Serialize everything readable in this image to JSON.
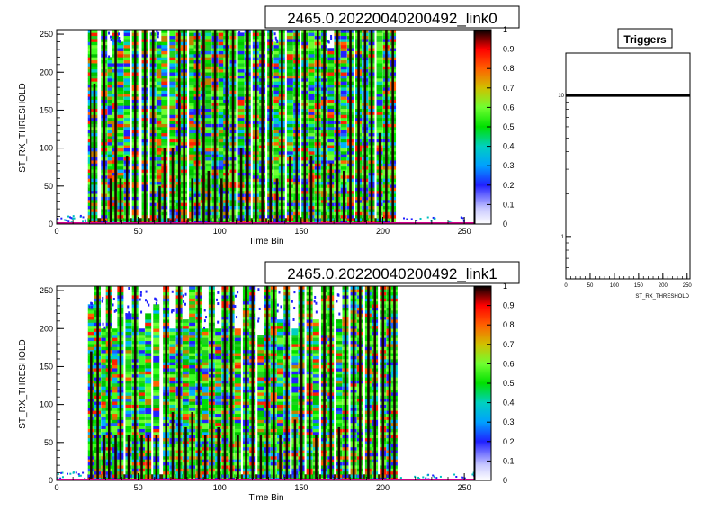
{
  "chart_data": [
    {
      "type": "heatmap",
      "title": "2465.0.20220040200492_link0",
      "xlabel": "Time Bin",
      "ylabel": "ST_RX_THRESHOLD",
      "xlim": [
        0,
        256
      ],
      "ylim": [
        0,
        256
      ],
      "xticks": [
        0,
        50,
        100,
        150,
        200,
        250
      ],
      "yticks": [
        0,
        50,
        100,
        150,
        200,
        250
      ],
      "zlim": [
        0,
        1
      ],
      "zticks": [
        0,
        0.1,
        0.2,
        0.3,
        0.4,
        0.5,
        0.6,
        0.7,
        0.8,
        0.9,
        1
      ],
      "active_x_range": [
        19,
        208
      ],
      "spikes": [
        {
          "x": 20,
          "top": 256,
          "dark": 256
        },
        {
          "x": 22,
          "top": 256,
          "dark": 185
        },
        {
          "x": 28,
          "top": 256,
          "dark": 256
        },
        {
          "x": 32,
          "top": 220,
          "dark": 60
        },
        {
          "x": 35,
          "top": 256,
          "dark": 256
        },
        {
          "x": 38,
          "top": 240,
          "dark": 60
        },
        {
          "x": 42,
          "top": 256,
          "dark": 90
        },
        {
          "x": 47,
          "top": 256,
          "dark": 256
        },
        {
          "x": 53,
          "top": 256,
          "dark": 256
        },
        {
          "x": 58,
          "top": 250,
          "dark": 256
        },
        {
          "x": 62,
          "top": 240,
          "dark": 50
        },
        {
          "x": 65,
          "top": 256,
          "dark": 100
        },
        {
          "x": 70,
          "top": 256,
          "dark": 100
        },
        {
          "x": 74,
          "top": 256,
          "dark": 256
        },
        {
          "x": 77,
          "top": 256,
          "dark": 256
        },
        {
          "x": 82,
          "top": 256,
          "dark": 60
        },
        {
          "x": 85,
          "top": 256,
          "dark": 256
        },
        {
          "x": 89,
          "top": 256,
          "dark": 256
        },
        {
          "x": 92,
          "top": 256,
          "dark": 70
        },
        {
          "x": 96,
          "top": 256,
          "dark": 256
        },
        {
          "x": 100,
          "top": 256,
          "dark": 60
        },
        {
          "x": 103,
          "top": 256,
          "dark": 256
        },
        {
          "x": 107,
          "top": 256,
          "dark": 256
        },
        {
          "x": 112,
          "top": 250,
          "dark": 100
        },
        {
          "x": 116,
          "top": 256,
          "dark": 256
        },
        {
          "x": 121,
          "top": 256,
          "dark": 256
        },
        {
          "x": 125,
          "top": 256,
          "dark": 256
        },
        {
          "x": 130,
          "top": 256,
          "dark": 256
        },
        {
          "x": 134,
          "top": 240,
          "dark": 60
        },
        {
          "x": 137,
          "top": 256,
          "dark": 256
        },
        {
          "x": 142,
          "top": 256,
          "dark": 90
        },
        {
          "x": 146,
          "top": 256,
          "dark": 256
        },
        {
          "x": 151,
          "top": 256,
          "dark": 256
        },
        {
          "x": 155,
          "top": 256,
          "dark": 90
        },
        {
          "x": 159,
          "top": 256,
          "dark": 256
        },
        {
          "x": 163,
          "top": 256,
          "dark": 256
        },
        {
          "x": 167,
          "top": 230,
          "dark": 80
        },
        {
          "x": 171,
          "top": 256,
          "dark": 256
        },
        {
          "x": 175,
          "top": 256,
          "dark": 70
        },
        {
          "x": 179,
          "top": 256,
          "dark": 256
        },
        {
          "x": 184,
          "top": 256,
          "dark": 256
        },
        {
          "x": 188,
          "top": 256,
          "dark": 256
        },
        {
          "x": 192,
          "top": 256,
          "dark": 256
        },
        {
          "x": 197,
          "top": 256,
          "dark": 120
        },
        {
          "x": 201,
          "top": 256,
          "dark": 256
        },
        {
          "x": 205,
          "top": 256,
          "dark": 256
        }
      ]
    },
    {
      "type": "heatmap",
      "title": "2465.0.20220040200492_link1",
      "xlabel": "Time Bin",
      "ylabel": "ST_RX_THRESHOLD",
      "xlim": [
        0,
        256
      ],
      "ylim": [
        0,
        256
      ],
      "xticks": [
        0,
        50,
        100,
        150,
        200,
        250
      ],
      "yticks": [
        0,
        50,
        100,
        150,
        200,
        250
      ],
      "zlim": [
        0,
        1
      ],
      "zticks": [
        0,
        0.1,
        0.2,
        0.3,
        0.4,
        0.5,
        0.6,
        0.7,
        0.8,
        0.9,
        1
      ],
      "active_x_range": [
        19,
        208
      ],
      "spikes": [
        {
          "x": 20,
          "top": 230,
          "dark": 170
        },
        {
          "x": 24,
          "top": 256,
          "dark": 256
        },
        {
          "x": 28,
          "top": 200,
          "dark": 60
        },
        {
          "x": 31,
          "top": 256,
          "dark": 256
        },
        {
          "x": 35,
          "top": 200,
          "dark": 60
        },
        {
          "x": 38,
          "top": 256,
          "dark": 256
        },
        {
          "x": 43,
          "top": 220,
          "dark": 60
        },
        {
          "x": 47,
          "top": 256,
          "dark": 256
        },
        {
          "x": 51,
          "top": 200,
          "dark": 60
        },
        {
          "x": 55,
          "top": 220,
          "dark": 60
        },
        {
          "x": 60,
          "top": 230,
          "dark": 60
        },
        {
          "x": 66,
          "top": 256,
          "dark": 256
        },
        {
          "x": 70,
          "top": 200,
          "dark": 90
        },
        {
          "x": 74,
          "top": 256,
          "dark": 256
        },
        {
          "x": 78,
          "top": 210,
          "dark": 70
        },
        {
          "x": 82,
          "top": 256,
          "dark": 90
        },
        {
          "x": 86,
          "top": 256,
          "dark": 256
        },
        {
          "x": 90,
          "top": 200,
          "dark": 60
        },
        {
          "x": 94,
          "top": 256,
          "dark": 256
        },
        {
          "x": 98,
          "top": 200,
          "dark": 70
        },
        {
          "x": 102,
          "top": 256,
          "dark": 256
        },
        {
          "x": 106,
          "top": 256,
          "dark": 256
        },
        {
          "x": 110,
          "top": 200,
          "dark": 60
        },
        {
          "x": 115,
          "top": 256,
          "dark": 256
        },
        {
          "x": 119,
          "top": 256,
          "dark": 256
        },
        {
          "x": 124,
          "top": 190,
          "dark": 60
        },
        {
          "x": 128,
          "top": 256,
          "dark": 256
        },
        {
          "x": 132,
          "top": 256,
          "dark": 256
        },
        {
          "x": 136,
          "top": 210,
          "dark": 60
        },
        {
          "x": 140,
          "top": 256,
          "dark": 256
        },
        {
          "x": 145,
          "top": 200,
          "dark": 80
        },
        {
          "x": 149,
          "top": 256,
          "dark": 256
        },
        {
          "x": 154,
          "top": 256,
          "dark": 256
        },
        {
          "x": 158,
          "top": 210,
          "dark": 60
        },
        {
          "x": 163,
          "top": 256,
          "dark": 256
        },
        {
          "x": 167,
          "top": 256,
          "dark": 256
        },
        {
          "x": 172,
          "top": 210,
          "dark": 70
        },
        {
          "x": 176,
          "top": 256,
          "dark": 256
        },
        {
          "x": 181,
          "top": 256,
          "dark": 256
        },
        {
          "x": 185,
          "top": 256,
          "dark": 256
        },
        {
          "x": 190,
          "top": 256,
          "dark": 256
        },
        {
          "x": 194,
          "top": 256,
          "dark": 256
        },
        {
          "x": 199,
          "top": 256,
          "dark": 256
        },
        {
          "x": 203,
          "top": 256,
          "dark": 256
        },
        {
          "x": 206,
          "top": 256,
          "dark": 256
        }
      ]
    },
    {
      "type": "line",
      "title": "Triggers",
      "xlabel": "ST_RX_THRESHOLD",
      "ylabel": "",
      "xlim": [
        0,
        256
      ],
      "ylim": [
        0.5,
        20
      ],
      "ylog": true,
      "xticks": [
        0,
        50,
        100,
        150,
        200,
        250
      ],
      "yticks": [
        1,
        10
      ],
      "x": [
        0,
        256
      ],
      "y": [
        10,
        10
      ]
    }
  ]
}
